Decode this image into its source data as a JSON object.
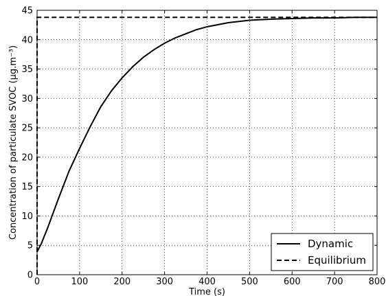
{
  "chart_data": {
    "type": "line",
    "title": "",
    "xlabel": "Time (s)",
    "ylabel": "Concentration of particulate SVOC (µg.m⁻³)",
    "xlim": [
      0,
      800
    ],
    "ylim": [
      0,
      45
    ],
    "xticks": [
      0,
      100,
      200,
      300,
      400,
      500,
      600,
      700,
      800
    ],
    "yticks": [
      0,
      5,
      10,
      15,
      20,
      25,
      30,
      35,
      40,
      45
    ],
    "grid": true,
    "legend_position": "bottom-right",
    "series": [
      {
        "name": "Dynamic",
        "style": "solid",
        "color": "#000000",
        "x": [
          0,
          10,
          25,
          50,
          75,
          100,
          125,
          150,
          175,
          200,
          225,
          250,
          275,
          300,
          325,
          350,
          375,
          400,
          450,
          500,
          550,
          600,
          650,
          700,
          750,
          800
        ],
        "y": [
          3.9,
          5.3,
          8.0,
          12.9,
          17.6,
          21.5,
          25.2,
          28.6,
          31.3,
          33.5,
          35.4,
          37.0,
          38.3,
          39.4,
          40.3,
          41.0,
          41.7,
          42.2,
          42.9,
          43.3,
          43.5,
          43.6,
          43.7,
          43.7,
          43.8,
          43.8
        ]
      },
      {
        "name": "Equilibrium",
        "style": "dashed",
        "color": "#000000",
        "x": [
          0,
          0,
          800
        ],
        "y": [
          0,
          43.8,
          43.8
        ]
      }
    ]
  }
}
